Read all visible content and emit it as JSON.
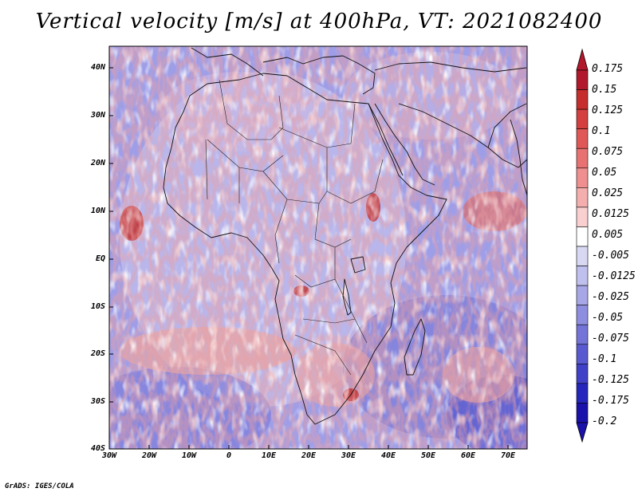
{
  "title": "Vertical velocity [m/s] at 400hPa, VT: 2021082400",
  "credit": "GrADS: IGES/COLA",
  "map": {
    "region": "Africa",
    "lat_range": [
      -40,
      45
    ],
    "lon_range": [
      -30,
      76
    ],
    "lat_ticks": [
      "40N",
      "30N",
      "20N",
      "10N",
      "EQ",
      "10S",
      "20S",
      "30S",
      "40S"
    ],
    "lon_ticks": [
      "30W",
      "20W",
      "10W",
      "0",
      "10E",
      "20E",
      "30E",
      "40E",
      "50E",
      "60E",
      "70E"
    ]
  },
  "colorbar": {
    "labels": [
      "0.175",
      "0.15",
      "0.125",
      "0.1",
      "0.075",
      "0.05",
      "0.025",
      "0.0125",
      "0.005",
      "-0.005",
      "-0.0125",
      "-0.025",
      "-0.05",
      "-0.075",
      "-0.1",
      "-0.125",
      "-0.175",
      "-0.2"
    ],
    "colors": [
      "#b2182b",
      "#c62d2d",
      "#d43f3f",
      "#e05757",
      "#e87272",
      "#ef8f8f",
      "#f5aeae",
      "#f9cfcf",
      "#ffffff",
      "#d8d8f3",
      "#c0c0ee",
      "#a7a7e8",
      "#8e8ee0",
      "#7474d8",
      "#5a5ad0",
      "#4141c8",
      "#2626bd",
      "#1a10aa"
    ]
  }
}
